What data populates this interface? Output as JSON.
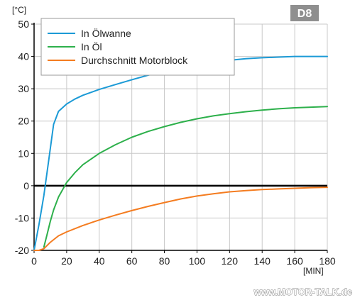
{
  "badge": "D8",
  "watermark": "www.MOTOR-TALK.de",
  "colors": {
    "grid": "#c8c8c8",
    "axis": "#000000",
    "badge_bg": "#8f8f8f"
  },
  "chart_data": {
    "type": "line",
    "title": "",
    "xlabel": "[MIN]",
    "ylabel": "[°C]",
    "xlim": [
      0,
      180
    ],
    "ylim": [
      -20,
      50
    ],
    "x_ticks": [
      0,
      20,
      40,
      60,
      80,
      100,
      120,
      140,
      160,
      180
    ],
    "y_ticks": [
      -20,
      -10,
      0,
      10,
      20,
      30,
      40,
      50
    ],
    "grid": true,
    "legend_position": "top-left",
    "series": [
      {
        "name": "In Ölwanne",
        "color": "#1b9ad6",
        "x": [
          0,
          3,
          6,
          9,
          12,
          15,
          20,
          25,
          30,
          40,
          50,
          60,
          70,
          80,
          90,
          100,
          110,
          120,
          130,
          140,
          150,
          160,
          170,
          180
        ],
        "y": [
          -20,
          -12,
          -3,
          8,
          19,
          23,
          25.3,
          26.8,
          28,
          29.8,
          31.3,
          32.8,
          34.2,
          35.4,
          36.5,
          37.4,
          38.2,
          38.8,
          39.3,
          39.6,
          39.8,
          40,
          40,
          40
        ]
      },
      {
        "name": "In Öl",
        "color": "#2db04b",
        "x": [
          6,
          8,
          10,
          12,
          15,
          20,
          25,
          30,
          40,
          50,
          60,
          70,
          80,
          90,
          100,
          110,
          120,
          130,
          140,
          150,
          160,
          170,
          180
        ],
        "y": [
          -19,
          -15,
          -11,
          -7.5,
          -3.5,
          1,
          4,
          6.5,
          10,
          12.7,
          15,
          16.8,
          18.3,
          19.6,
          20.7,
          21.6,
          22.3,
          22.9,
          23.4,
          23.8,
          24.1,
          24.3,
          24.5
        ]
      },
      {
        "name": "Durchschnitt Motorblock",
        "color": "#f47c20",
        "x": [
          0,
          3,
          6,
          10,
          15,
          20,
          30,
          40,
          50,
          60,
          70,
          80,
          90,
          100,
          110,
          120,
          130,
          140,
          150,
          160,
          170,
          180
        ],
        "y": [
          -20,
          -20,
          -19.5,
          -17.5,
          -15.5,
          -14.3,
          -12.3,
          -10.6,
          -9.1,
          -7.7,
          -6.4,
          -5.2,
          -4.1,
          -3.2,
          -2.5,
          -1.9,
          -1.5,
          -1.2,
          -1,
          -0.8,
          -0.6,
          -0.5
        ]
      }
    ]
  }
}
